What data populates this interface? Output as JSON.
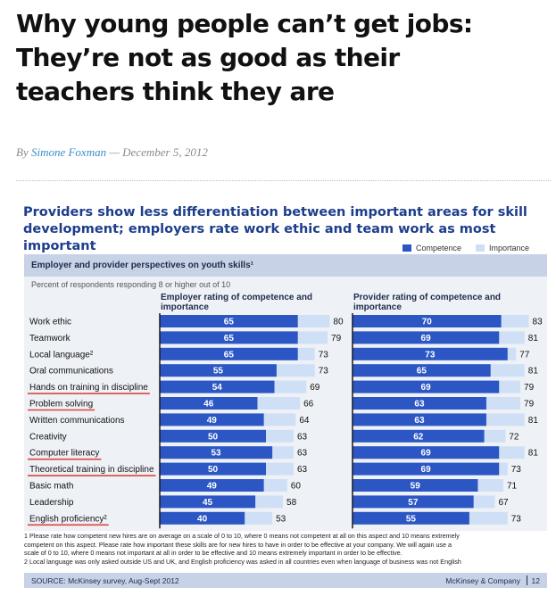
{
  "article": {
    "headline_lines": [
      "Why young people can’t get jobs:",
      "They’re not as good as their",
      "teachers think they are"
    ],
    "byline_prefix": "By",
    "author": "Simone Foxman",
    "date_sep": "—",
    "date": "December 5, 2012"
  },
  "figure": {
    "title_lines": [
      "Providers show less differentiation between important areas for skill",
      "development; employers rate work ethic and team work as most important"
    ],
    "legend": [
      "Competence",
      "Importance"
    ],
    "panel_title": "Employer and provider perspectives on youth skills¹",
    "subtitle": "Percent of respondents responding 8 or higher out of 10",
    "footnotes": [
      "1 Please rate how competent new hires are on average on a scale of 0 to 10, where 0 means not competent at all on this aspect and 10 means extremely",
      "competent on this aspect. Please rate how important these skills are for new hires to have in order to be effective at your company. We will again use a",
      "scale of 0 to 10, where 0 means not important at all in order to be effective and 10 means extremely important in order to be effective.",
      "2 Local language was only asked outside US and UK, and English proficiency was asked in all countries even when language of business was not English"
    ],
    "source": "SOURCE: McKinsey survey, Aug-Sept 2012",
    "publisher": "McKinsey & Company",
    "page_number": "12"
  },
  "chart_data": {
    "type": "bar",
    "orientation": "horizontal",
    "categories": [
      "Work ethic",
      "Teamwork",
      "Local language²",
      "Oral communications",
      "Hands on training in discipline",
      "Problem solving",
      "Written communications",
      "Creativity",
      "Computer literacy",
      "Theoretical training in discipline",
      "Basic math",
      "Leadership",
      "English proficiency²"
    ],
    "underlined_categories": [
      "Hands on training in discipline",
      "Problem solving",
      "Computer literacy",
      "Theoretical training in discipline",
      "English proficiency²"
    ],
    "panels": [
      {
        "title": "Employer rating of competence and importance",
        "series": [
          {
            "name": "Competence",
            "values": [
              65,
              65,
              65,
              55,
              54,
              46,
              49,
              50,
              53,
              50,
              49,
              45,
              40
            ]
          },
          {
            "name": "Importance",
            "values": [
              80,
              79,
              73,
              73,
              69,
              66,
              64,
              63,
              63,
              63,
              60,
              58,
              53
            ]
          }
        ]
      },
      {
        "title": "Provider rating of competence and importance",
        "series": [
          {
            "name": "Competence",
            "values": [
              70,
              69,
              73,
              65,
              69,
              63,
              63,
              62,
              69,
              69,
              59,
              57,
              55
            ]
          },
          {
            "name": "Importance",
            "values": [
              83,
              81,
              77,
              81,
              79,
              79,
              81,
              72,
              81,
              73,
              71,
              67,
              73
            ]
          }
        ]
      }
    ],
    "colors": {
      "competence": "#2b56c4",
      "importance": "#cfe0f6",
      "underline": "#d9473b"
    },
    "xlim": [
      0,
      100
    ],
    "legend_position": "top-right"
  }
}
